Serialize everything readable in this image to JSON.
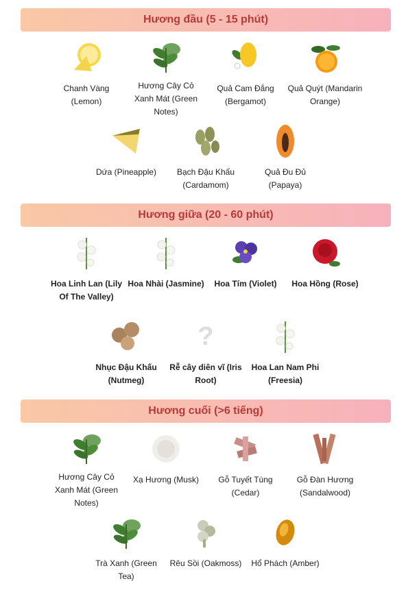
{
  "colors": {
    "header_start": "#f9c8a6",
    "header_end": "#f7b1bc",
    "header_text": "#b8393a"
  },
  "sections": [
    {
      "title": "Hương đầu (5 - 15 phút)",
      "items": [
        {
          "label": "Chanh Vàng (Lemon)",
          "icon": "lemon"
        },
        {
          "label": "Hương Cây Cỏ Xanh Mát (Green Notes)",
          "icon": "leaves"
        },
        {
          "label": "Quả Cam Đắng (Bergamot)",
          "icon": "bergamot"
        },
        {
          "label": "Quả Quýt (Mandarin Orange)",
          "icon": "orange"
        },
        {
          "label": "Dứa (Pineapple)",
          "icon": "pineapple"
        },
        {
          "label": "Bạch Đậu Khấu (Cardamom)",
          "icon": "cardamom"
        },
        {
          "label": "Quả Đu Đủ (Papaya)",
          "icon": "papaya"
        }
      ]
    },
    {
      "title": "Hương giữa (20 - 60 phút)",
      "items": [
        {
          "label": "Hoa Linh Lan (Lily Of The Valley)",
          "icon": "white-flower"
        },
        {
          "label": "Hoa Nhài (Jasmine)",
          "icon": "white-flower"
        },
        {
          "label": "Hoa Tím (Violet)",
          "icon": "violet"
        },
        {
          "label": "Hoa Hồng (Rose)",
          "icon": "rose"
        },
        {
          "label": "Nhục Đậu Khấu (Nutmeg)",
          "icon": "nutmeg"
        },
        {
          "label": "Rễ cây diên vĩ (Iris Root)",
          "icon": "question"
        },
        {
          "label": "Hoa Lan Nam Phi (Freesia)",
          "icon": "white-flower"
        }
      ]
    },
    {
      "title": "Hương cuối (>6 tiếng)",
      "items": [
        {
          "label": "Hương Cây Cỏ Xanh Mát (Green Notes)",
          "icon": "leaves"
        },
        {
          "label": "Xạ Hương (Musk)",
          "icon": "musk"
        },
        {
          "label": "Gỗ Tuyết Tùng (Cedar)",
          "icon": "cedar"
        },
        {
          "label": "Gỗ Đàn Hương (Sandalwood)",
          "icon": "sandalwood"
        },
        {
          "label": "Trà Xanh (Green Tea)",
          "icon": "leaves"
        },
        {
          "label": "Rêu Sồi (Oakmoss)",
          "icon": "oakmoss"
        },
        {
          "label": "Hổ Phách (Amber)",
          "icon": "amber"
        }
      ]
    }
  ]
}
